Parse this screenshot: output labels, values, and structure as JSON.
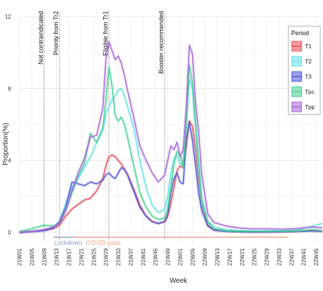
{
  "chart_data": {
    "type": "line",
    "title": "",
    "xlabel": "Week",
    "ylabel": "Proportion(%)",
    "ylim": [
      0,
      12
    ],
    "y_ticks": [
      0,
      4,
      8,
      12
    ],
    "grid": true,
    "legend_title": "Period",
    "legend_position": "top-right",
    "x_ticks": [
      "21W01",
      "21W05",
      "21W09",
      "21W13",
      "21W17",
      "21W21",
      "21W25",
      "21W29",
      "21W33",
      "21W37",
      "21W41",
      "21W45",
      "21W49",
      "22W01",
      "22W05",
      "22W09",
      "22W13",
      "22W17",
      "22W21",
      "22W25",
      "22W29",
      "22W33",
      "22W37",
      "22W41",
      "22W45"
    ],
    "x_range_weeks": [
      0,
      98
    ],
    "vlines": [
      {
        "label": "Not contraindicated",
        "week": 8
      },
      {
        "label": "Priority from Tr2",
        "week": 13
      },
      {
        "label": "Eligible from Tr1",
        "week": 29
      },
      {
        "label": "Booster recommended",
        "week": 47
      }
    ],
    "periods": [
      {
        "label": "Lockdown",
        "start_week": 11,
        "end_week": 18,
        "color": "#8fa3c8"
      },
      {
        "label": "COVID pass",
        "start_week": 18,
        "end_week": 87,
        "color": "#f2a38a"
      }
    ],
    "series": [
      {
        "name": "T1",
        "color": "#e8474f",
        "x": [
          0,
          4,
          8,
          11,
          13,
          15,
          17,
          19,
          21,
          23,
          25,
          27,
          28,
          29,
          30,
          31,
          32,
          33,
          34,
          35,
          37,
          39,
          41,
          43,
          45,
          47,
          48,
          49,
          50,
          51,
          52,
          53,
          54,
          55,
          56,
          57,
          58,
          59,
          61,
          63,
          67,
          71,
          75,
          80,
          85,
          90,
          95,
          98
        ],
        "y": [
          0.0,
          0.05,
          0.1,
          0.2,
          0.4,
          0.9,
          1.3,
          1.55,
          1.8,
          1.9,
          2.3,
          3.0,
          3.7,
          4.2,
          4.3,
          4.2,
          4.0,
          3.8,
          3.5,
          3.2,
          2.4,
          1.5,
          0.9,
          0.6,
          0.5,
          0.6,
          0.9,
          1.6,
          2.5,
          3.4,
          3.7,
          3.6,
          4.8,
          6.2,
          5.9,
          4.6,
          2.9,
          1.5,
          0.4,
          0.15,
          0.07,
          0.05,
          0.03,
          0.03,
          0.04,
          0.06,
          0.1,
          0.05
        ]
      },
      {
        "name": "T2",
        "color": "#5fe2e6",
        "x": [
          0,
          4,
          8,
          11,
          13,
          15,
          17,
          19,
          21,
          23,
          25,
          27,
          28,
          29,
          30,
          31,
          32,
          33,
          34,
          35,
          37,
          39,
          41,
          43,
          45,
          47,
          48,
          49,
          50,
          51,
          52,
          53,
          54,
          55,
          56,
          57,
          58,
          59,
          61,
          63,
          67,
          71,
          75,
          80,
          85,
          90,
          95,
          98
        ],
        "y": [
          0.0,
          0.05,
          0.1,
          0.25,
          0.6,
          1.6,
          2.5,
          3.0,
          3.6,
          4.2,
          5.0,
          5.7,
          6.6,
          7.0,
          7.4,
          7.6,
          7.9,
          8.0,
          7.6,
          7.0,
          5.8,
          4.0,
          2.5,
          1.5,
          1.1,
          1.3,
          2.0,
          3.3,
          4.1,
          4.3,
          3.8,
          3.9,
          6.2,
          8.5,
          8.0,
          5.8,
          3.5,
          1.6,
          0.6,
          0.3,
          0.15,
          0.1,
          0.08,
          0.08,
          0.1,
          0.15,
          0.35,
          0.5
        ]
      },
      {
        "name": "T3",
        "color": "#4a4fd8",
        "x": [
          0,
          4,
          8,
          11,
          13,
          15,
          17,
          19,
          21,
          23,
          25,
          27,
          28,
          29,
          30,
          31,
          32,
          33,
          34,
          35,
          37,
          39,
          41,
          43,
          45,
          47,
          48,
          49,
          50,
          51,
          52,
          53,
          54,
          55,
          56,
          57,
          58,
          59,
          61,
          63,
          67,
          71,
          75,
          80,
          85,
          90,
          95,
          98
        ],
        "y": [
          0.0,
          0.05,
          0.1,
          0.25,
          0.6,
          1.4,
          2.8,
          2.7,
          2.6,
          2.8,
          2.7,
          2.9,
          3.2,
          3.3,
          3.1,
          3.0,
          3.3,
          3.6,
          3.5,
          3.2,
          2.3,
          1.4,
          0.9,
          0.6,
          0.5,
          0.6,
          1.0,
          2.2,
          3.0,
          3.3,
          2.8,
          2.7,
          5.2,
          6.1,
          5.1,
          3.7,
          2.2,
          1.2,
          0.35,
          0.12,
          0.05,
          0.03,
          0.02,
          0.02,
          0.03,
          0.05,
          0.08,
          0.05
        ]
      },
      {
        "name": "Tpc",
        "color": "#3fcf8e",
        "x": [
          0,
          4,
          8,
          11,
          13,
          15,
          17,
          19,
          21,
          23,
          25,
          27,
          28,
          29,
          30,
          31,
          32,
          33,
          34,
          35,
          37,
          39,
          41,
          43,
          45,
          47,
          48,
          49,
          50,
          51,
          52,
          53,
          54,
          55,
          56,
          57,
          58,
          59,
          61,
          63,
          67,
          71,
          75,
          80,
          85,
          90,
          95,
          98
        ],
        "y": [
          0.05,
          0.2,
          0.4,
          0.35,
          0.5,
          1.2,
          2.2,
          3.1,
          3.8,
          5.5,
          5.0,
          5.8,
          7.3,
          9.2,
          8.1,
          6.5,
          6.2,
          6.4,
          6.0,
          5.3,
          3.7,
          2.2,
          1.4,
          0.9,
          0.7,
          0.8,
          1.3,
          2.5,
          3.8,
          4.5,
          4.3,
          3.6,
          5.8,
          9.3,
          8.3,
          6.0,
          3.9,
          1.9,
          0.55,
          0.2,
          0.08,
          0.06,
          0.05,
          0.05,
          0.06,
          0.08,
          0.15,
          0.1
        ]
      },
      {
        "name": "Tpp",
        "color": "#a55fd8",
        "x": [
          0,
          4,
          8,
          11,
          13,
          15,
          17,
          19,
          21,
          23,
          25,
          27,
          28,
          29,
          30,
          31,
          32,
          33,
          34,
          35,
          37,
          39,
          41,
          43,
          45,
          47,
          48,
          49,
          50,
          51,
          52,
          53,
          54,
          55,
          56,
          57,
          58,
          59,
          61,
          63,
          67,
          71,
          75,
          80,
          85,
          90,
          95,
          98
        ],
        "y": [
          0.0,
          0.05,
          0.15,
          0.3,
          0.5,
          1.2,
          2.3,
          3.3,
          4.1,
          5.3,
          5.4,
          6.9,
          9.6,
          10.6,
          10.1,
          9.6,
          9.8,
          9.4,
          8.7,
          7.9,
          6.4,
          4.8,
          4.0,
          3.3,
          2.8,
          3.2,
          4.0,
          4.8,
          4.6,
          5.0,
          4.2,
          4.6,
          7.0,
          10.4,
          9.9,
          7.2,
          5.6,
          3.2,
          1.0,
          0.55,
          0.35,
          0.25,
          0.2,
          0.2,
          0.18,
          0.22,
          0.3,
          0.25
        ]
      }
    ]
  }
}
